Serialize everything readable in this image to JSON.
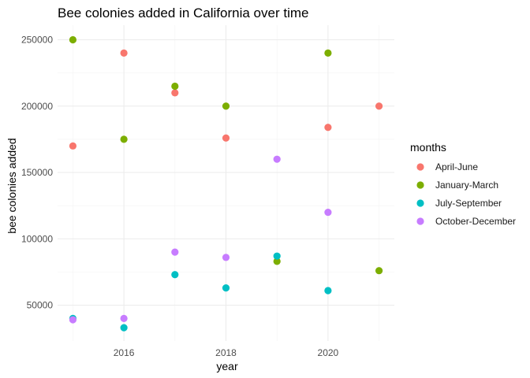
{
  "chart_data": {
    "type": "scatter",
    "title": "Bee colonies added in California over time",
    "xlabel": "year",
    "ylabel": "bee colonies added",
    "xlim": [
      2014.7,
      2021.3
    ],
    "ylim": [
      23000,
      261000
    ],
    "x_ticks": [
      2016,
      2018,
      2020
    ],
    "x_minor_ticks": [
      2015,
      2017,
      2019,
      2021
    ],
    "y_ticks": [
      50000,
      100000,
      150000,
      200000,
      250000
    ],
    "y_minor_ticks": [
      75000,
      125000,
      175000,
      225000
    ],
    "grid": true,
    "legend": {
      "title": "months",
      "placement": "right"
    },
    "series": [
      {
        "name": "April-June",
        "color": "#F8766D",
        "points": [
          [
            2015,
            170000
          ],
          [
            2016,
            240000
          ],
          [
            2017,
            210000
          ],
          [
            2018,
            176000
          ],
          [
            2020,
            184000
          ],
          [
            2021,
            200000
          ]
        ]
      },
      {
        "name": "January-March",
        "color": "#7CAE00",
        "points": [
          [
            2015,
            250000
          ],
          [
            2016,
            175000
          ],
          [
            2017,
            215000
          ],
          [
            2018,
            200000
          ],
          [
            2019,
            83000
          ],
          [
            2020,
            240000
          ],
          [
            2021,
            76000
          ]
        ]
      },
      {
        "name": "July-September",
        "color": "#00BFC4",
        "points": [
          [
            2015,
            40000
          ],
          [
            2016,
            33000
          ],
          [
            2017,
            73000
          ],
          [
            2018,
            63000
          ],
          [
            2019,
            87000
          ],
          [
            2020,
            61000
          ]
        ]
      },
      {
        "name": "October-December",
        "color": "#C77CFF",
        "points": [
          [
            2015,
            39000
          ],
          [
            2016,
            40000
          ],
          [
            2017,
            90000
          ],
          [
            2018,
            86000
          ],
          [
            2019,
            160000
          ],
          [
            2020,
            120000
          ]
        ]
      }
    ]
  }
}
